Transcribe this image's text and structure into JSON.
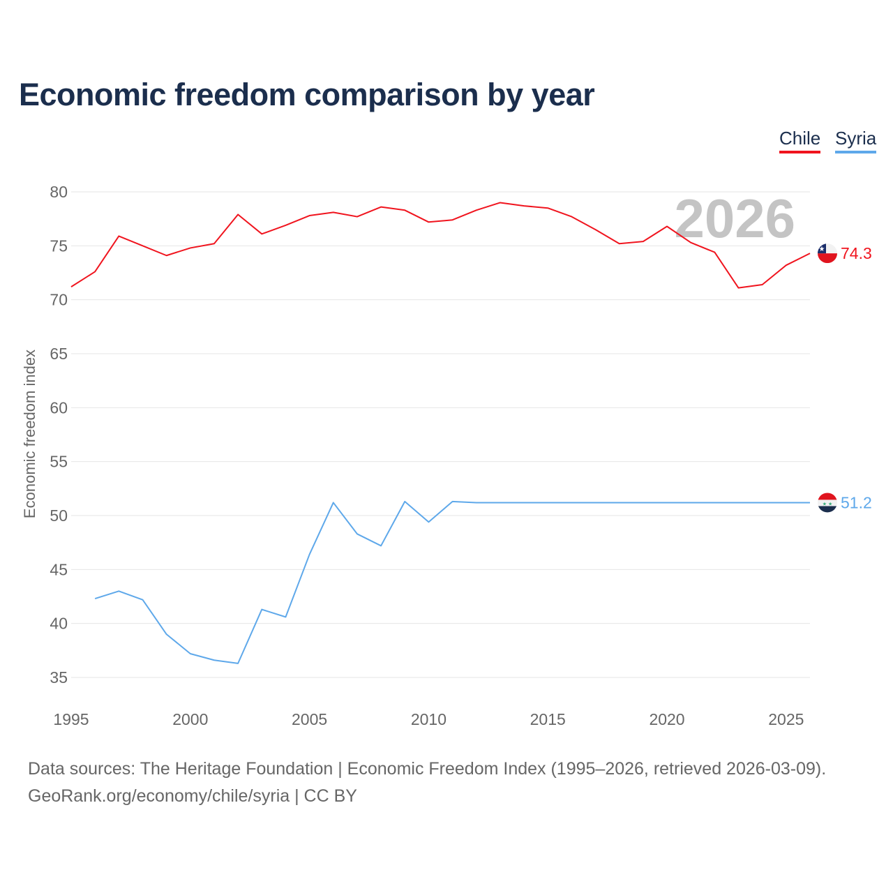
{
  "title": "Economic freedom comparison by year",
  "footer": {
    "line1": "Data sources: The Heritage Foundation | Economic Freedom Index (1995–2026, retrieved 2026-03-09).",
    "line2": "GeoRank.org/economy/chile/syria | CC BY"
  },
  "chart_data": {
    "type": "line",
    "title": "Economic freedom comparison by year",
    "ylabel": "Economic freedom index",
    "xlabel": "",
    "xlim": [
      1995,
      2026
    ],
    "ylim": [
      35,
      80
    ],
    "xticks": [
      1995,
      2000,
      2005,
      2010,
      2015,
      2020,
      2025
    ],
    "yticks": [
      35,
      40,
      45,
      50,
      55,
      60,
      65,
      70,
      75,
      80
    ],
    "grid": true,
    "legend_position": "top-right",
    "watermark_year": "2026",
    "series": [
      {
        "name": "Chile",
        "color": "#f0141e",
        "end_label": "74.3",
        "flag": "chile-flag-icon",
        "x": [
          1995,
          1996,
          1997,
          1998,
          1999,
          2000,
          2001,
          2002,
          2003,
          2004,
          2005,
          2006,
          2007,
          2008,
          2009,
          2010,
          2011,
          2012,
          2013,
          2014,
          2015,
          2016,
          2017,
          2018,
          2019,
          2020,
          2021,
          2022,
          2023,
          2024,
          2025,
          2026
        ],
        "values": [
          71.2,
          72.6,
          75.9,
          75.0,
          74.1,
          74.8,
          75.2,
          77.9,
          76.1,
          76.9,
          77.8,
          78.1,
          77.7,
          78.6,
          78.3,
          77.2,
          77.4,
          78.3,
          79.0,
          78.7,
          78.5,
          77.7,
          76.5,
          75.2,
          75.4,
          76.8,
          75.3,
          74.4,
          71.1,
          71.4,
          73.2,
          74.3
        ]
      },
      {
        "name": "Syria",
        "color": "#5ea8ea",
        "end_label": "51.2",
        "flag": "syria-flag-icon",
        "x": [
          1996,
          1997,
          1998,
          1999,
          2000,
          2001,
          2002,
          2003,
          2004,
          2005,
          2006,
          2007,
          2008,
          2009,
          2010,
          2011,
          2012,
          2013,
          2014,
          2015,
          2016,
          2017,
          2018,
          2019,
          2020,
          2021,
          2022,
          2023,
          2024,
          2025,
          2026
        ],
        "values": [
          42.3,
          43.0,
          42.2,
          39.0,
          37.2,
          36.6,
          36.3,
          41.3,
          40.6,
          46.4,
          51.2,
          48.3,
          47.2,
          51.3,
          49.4,
          51.3,
          51.2,
          51.2,
          51.2,
          51.2,
          51.2,
          51.2,
          51.2,
          51.2,
          51.2,
          51.2,
          51.2,
          51.2,
          51.2,
          51.2,
          51.2
        ]
      }
    ]
  }
}
